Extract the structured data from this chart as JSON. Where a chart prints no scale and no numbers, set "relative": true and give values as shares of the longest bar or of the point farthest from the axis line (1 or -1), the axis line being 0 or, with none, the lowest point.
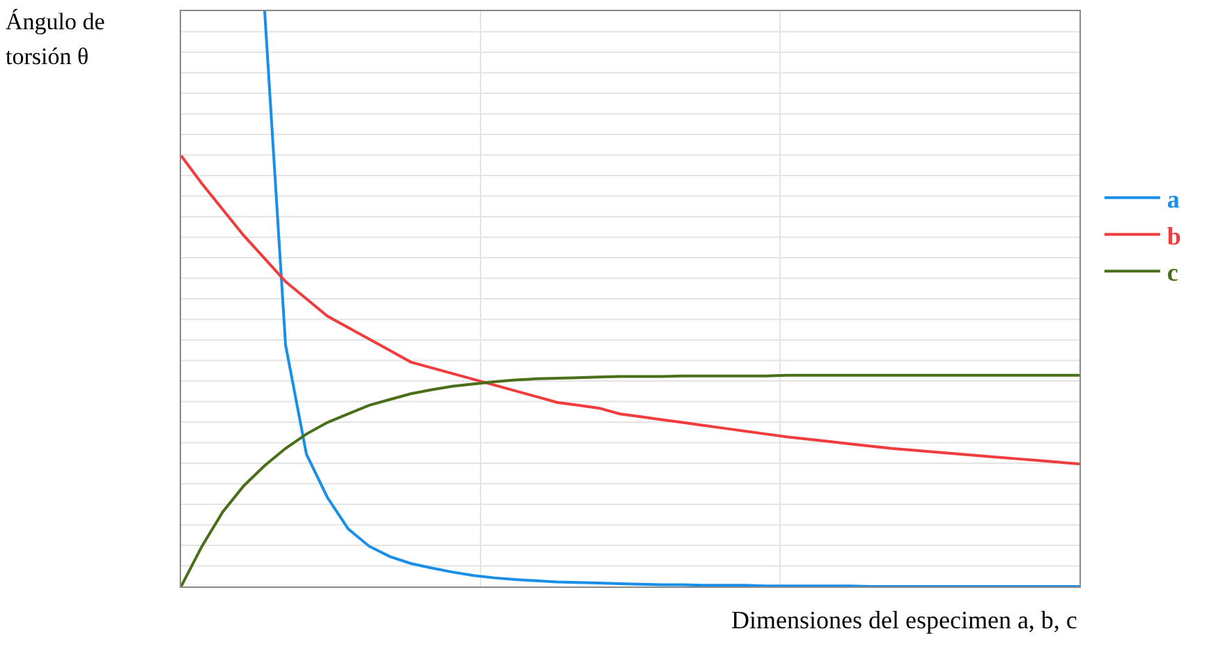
{
  "chart_data": {
    "type": "line",
    "relative": true,
    "xlabel": "Dimensiones del especimen a, b, c",
    "ylabel": "Ángulo de torsión θ",
    "grid": true,
    "legend": "right",
    "marker": "none",
    "line_style": "solid",
    "categories": [
      null,
      null,
      null,
      null,
      null,
      null,
      null,
      null,
      null,
      null,
      null,
      null,
      null,
      null,
      null,
      null,
      null,
      null,
      null,
      null,
      null,
      null,
      null,
      null,
      null,
      null,
      null,
      null,
      null,
      null,
      null,
      null,
      null,
      null,
      null,
      null,
      null,
      null,
      null,
      null,
      null,
      null,
      null,
      null
    ],
    "series": [
      {
        "name": "a",
        "color": "#1a8fe8",
        "values": [
          null,
          null,
          null,
          null,
          1.0,
          0.42,
          0.23,
          0.155,
          0.1,
          0.07,
          0.052,
          0.04,
          0.032,
          0.025,
          0.019,
          0.015,
          0.012,
          0.01,
          0.008,
          0.007,
          0.006,
          0.005,
          0.004,
          0.003,
          0.003,
          0.002,
          0.002,
          0.002,
          0.001,
          0.001,
          0.001,
          0.001,
          0.001,
          0,
          0,
          0,
          0,
          0,
          0,
          0,
          0,
          0,
          0,
          0
        ]
      },
      {
        "name": "b",
        "color": "#f03c3c",
        "values": [
          0.749,
          0.7,
          0.655,
          0.61,
          0.57,
          0.53,
          0.5,
          0.47,
          0.45,
          0.43,
          0.41,
          0.39,
          0.38,
          0.37,
          0.36,
          0.35,
          0.34,
          0.33,
          0.32,
          0.315,
          0.31,
          0.3,
          0.295,
          0.29,
          0.285,
          0.28,
          0.275,
          0.27,
          0.265,
          0.26,
          0.256,
          0.252,
          0.248,
          0.244,
          0.24,
          0.237,
          0.234,
          0.231,
          0.228,
          0.225,
          0.222,
          0.219,
          0.216,
          0.213
        ]
      },
      {
        "name": "c",
        "color": "#4a6e1a",
        "values": [
          0,
          0.07,
          0.13,
          0.175,
          0.21,
          0.24,
          0.265,
          0.285,
          0.3,
          0.315,
          0.325,
          0.335,
          0.342,
          0.348,
          0.352,
          0.356,
          0.359,
          0.361,
          0.362,
          0.363,
          0.364,
          0.365,
          0.365,
          0.365,
          0.366,
          0.366,
          0.366,
          0.366,
          0.366,
          0.367,
          0.367,
          0.367,
          0.367,
          0.367,
          0.367,
          0.367,
          0.367,
          0.367,
          0.367,
          0.367,
          0.367,
          0.367,
          0.367,
          0.367
        ]
      }
    ]
  }
}
